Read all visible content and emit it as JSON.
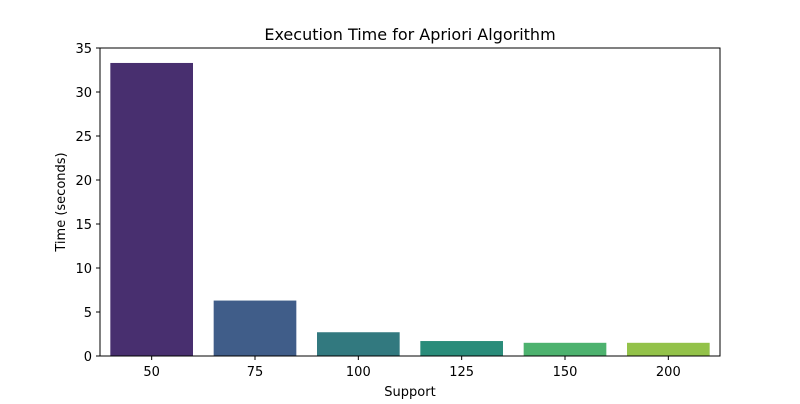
{
  "chart_data": {
    "type": "bar",
    "title": "Execution Time for Apriori Algorithm",
    "xlabel": "Support",
    "ylabel": "Time (seconds)",
    "categories": [
      "50",
      "75",
      "100",
      "125",
      "150",
      "200"
    ],
    "values": [
      33.3,
      6.3,
      2.7,
      1.7,
      1.5,
      1.5
    ],
    "ylim": [
      0,
      35
    ],
    "yticks": [
      0,
      5,
      10,
      15,
      20,
      25,
      30,
      35
    ],
    "grid": false,
    "legend": "none",
    "colors": [
      "#482f6f",
      "#405d89",
      "#32797f",
      "#2a8c7a",
      "#4db26e",
      "#93c249"
    ]
  }
}
